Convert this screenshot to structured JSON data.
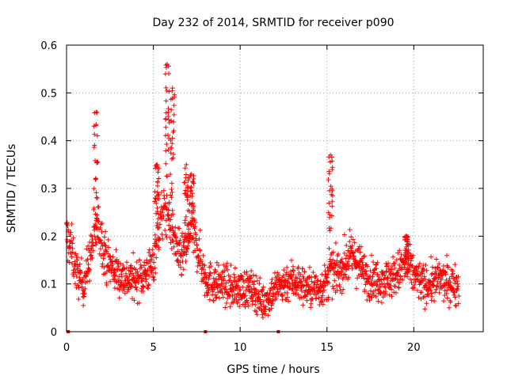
{
  "chart_data": {
    "type": "scatter",
    "title": "Day 232 of 2014, SRMTID for receiver p090",
    "xlabel": "GPS time / hours",
    "ylabel": "SRMTID / TECUs",
    "xlim": [
      0,
      24
    ],
    "ylim": [
      0,
      0.6
    ],
    "xticks": [
      0,
      5,
      10,
      15,
      20
    ],
    "xtick_labels": [
      "0",
      "5",
      "10",
      "15",
      "20"
    ],
    "yticks": [
      0,
      0.1,
      0.2,
      0.3,
      0.4,
      0.5,
      0.6
    ],
    "ytick_labels": [
      "0",
      "0.1",
      "0.2",
      "0.3",
      "0.4",
      "0.5",
      "0.6"
    ],
    "grid": true,
    "marker": "+",
    "color": "#ff0000",
    "series_envelope": {
      "description": "approximate baseline and peak profile of the dense scatter",
      "x": [
        0.0,
        0.3,
        0.6,
        1.0,
        1.3,
        1.6,
        1.8,
        2.0,
        2.3,
        2.7,
        3.0,
        3.5,
        4.0,
        4.5,
        5.0,
        5.2,
        5.5,
        5.8,
        6.0,
        6.3,
        6.6,
        7.0,
        7.2,
        7.5,
        7.8,
        8.0,
        8.5,
        9.0,
        9.5,
        10.0,
        10.5,
        11.0,
        11.3,
        11.6,
        12.0,
        12.5,
        13.0,
        13.5,
        14.0,
        14.5,
        15.0,
        15.2,
        15.4,
        15.8,
        16.2,
        16.5,
        17.0,
        17.5,
        18.0,
        18.5,
        19.0,
        19.5,
        20.0,
        20.5,
        21.0,
        21.5,
        22.0,
        22.6
      ],
      "y": [
        0.2,
        0.17,
        0.12,
        0.1,
        0.15,
        0.2,
        0.22,
        0.2,
        0.15,
        0.13,
        0.12,
        0.11,
        0.11,
        0.12,
        0.14,
        0.2,
        0.24,
        0.26,
        0.23,
        0.18,
        0.15,
        0.19,
        0.22,
        0.18,
        0.14,
        0.11,
        0.1,
        0.1,
        0.09,
        0.09,
        0.09,
        0.08,
        0.06,
        0.07,
        0.09,
        0.1,
        0.11,
        0.1,
        0.09,
        0.09,
        0.1,
        0.13,
        0.12,
        0.13,
        0.15,
        0.16,
        0.13,
        0.11,
        0.11,
        0.11,
        0.12,
        0.14,
        0.12,
        0.1,
        0.1,
        0.11,
        0.1,
        0.1
      ]
    },
    "spikes": [
      {
        "x": 1.7,
        "ymax": 0.46
      },
      {
        "x": 5.2,
        "ymax": 0.35
      },
      {
        "x": 5.8,
        "ymax": 0.56
      },
      {
        "x": 6.1,
        "ymax": 0.51
      },
      {
        "x": 6.9,
        "ymax": 0.35
      },
      {
        "x": 7.2,
        "ymax": 0.33
      },
      {
        "x": 15.2,
        "ymax": 0.37
      },
      {
        "x": 19.6,
        "ymax": 0.2
      }
    ],
    "zero_points": [
      0.1,
      8.0,
      12.2
    ],
    "x_max_data": 22.6
  }
}
